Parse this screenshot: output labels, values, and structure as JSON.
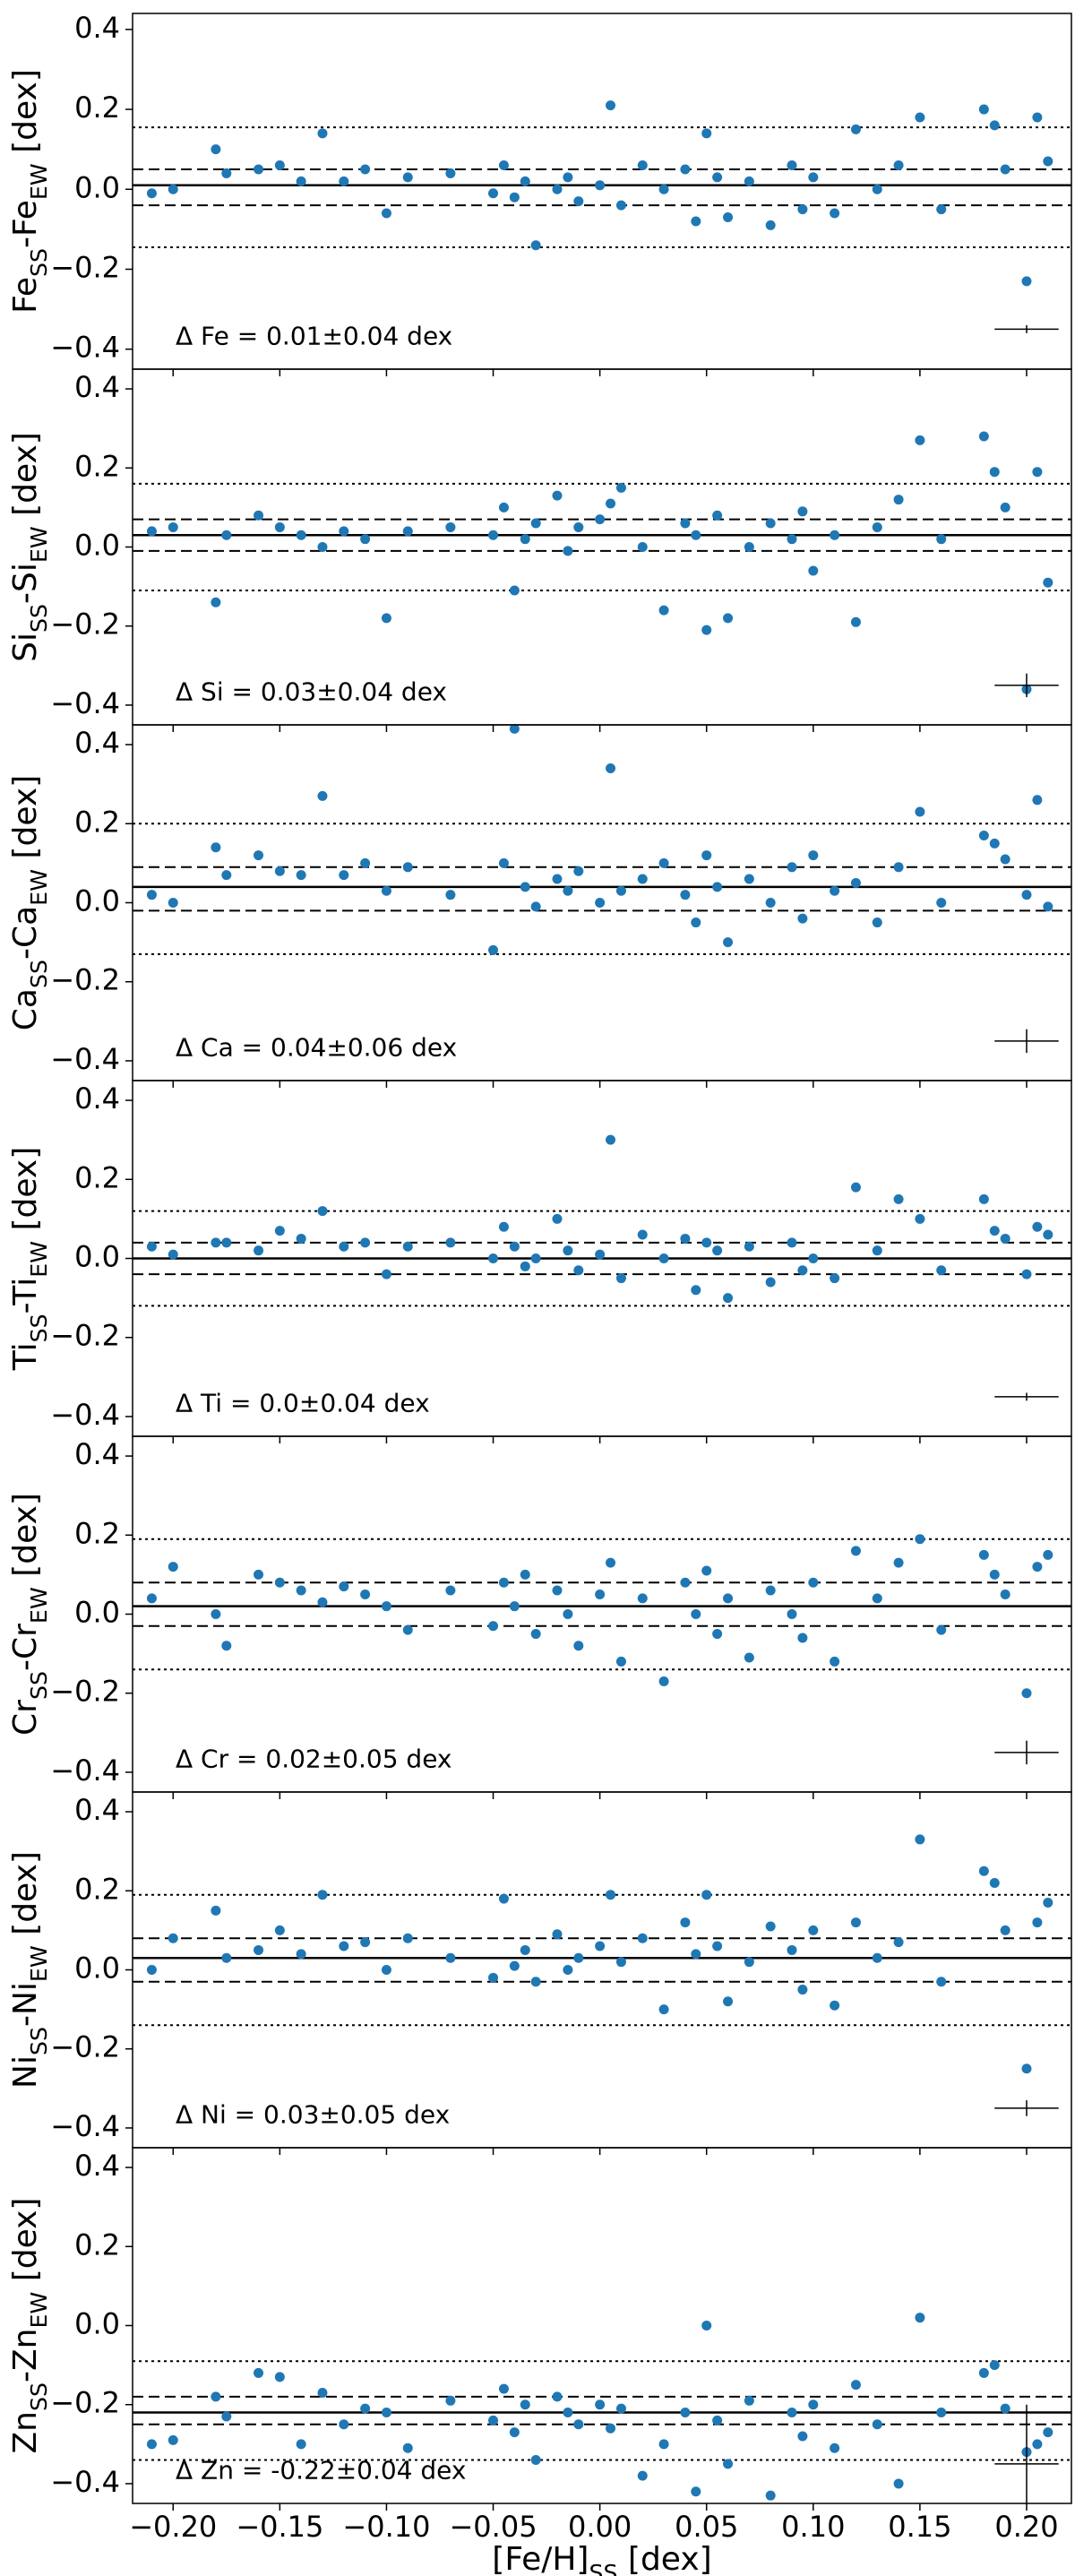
{
  "chart_data": [
    {
      "type": "scatter",
      "color": "#1f77b4",
      "ylabel": [
        "Fe",
        "SS",
        "-Fe",
        "EW",
        " [dex]"
      ],
      "annotation": "Δ Fe = 0.01±0.04 dex",
      "x": [
        -0.21,
        -0.2,
        -0.18,
        -0.175,
        -0.16,
        -0.15,
        -0.14,
        -0.13,
        -0.12,
        -0.11,
        -0.1,
        -0.09,
        -0.07,
        -0.05,
        -0.045,
        -0.04,
        -0.035,
        -0.03,
        -0.02,
        -0.015,
        -0.01,
        0.0,
        0.005,
        0.01,
        0.02,
        0.03,
        0.04,
        0.045,
        0.05,
        0.055,
        0.06,
        0.07,
        0.08,
        0.09,
        0.095,
        0.1,
        0.11,
        0.12,
        0.13,
        0.14,
        0.15,
        0.16,
        0.18,
        0.185,
        0.19,
        0.2,
        0.205,
        0.21
      ],
      "values": [
        -0.01,
        0.0,
        0.1,
        0.04,
        0.05,
        0.06,
        0.02,
        0.14,
        0.02,
        0.05,
        -0.06,
        0.03,
        0.04,
        -0.01,
        0.06,
        -0.02,
        0.02,
        -0.14,
        0.0,
        0.03,
        -0.03,
        0.01,
        0.21,
        -0.04,
        0.06,
        0.0,
        0.05,
        -0.08,
        0.14,
        0.03,
        -0.07,
        0.02,
        -0.09,
        0.06,
        -0.05,
        0.03,
        -0.06,
        0.15,
        0.0,
        0.06,
        0.18,
        -0.05,
        0.2,
        0.16,
        0.05,
        -0.23,
        0.18,
        0.07
      ],
      "hlines": [
        {
          "value": 0.01,
          "style": "solid"
        },
        {
          "value": 0.05,
          "style": "dashed"
        },
        {
          "value": -0.04,
          "style": "dashed"
        },
        {
          "value": 0.155,
          "style": "dotted"
        },
        {
          "value": -0.145,
          "style": "dotted"
        }
      ],
      "error": {
        "x": 0.2,
        "y": -0.35,
        "xerr": 0.015,
        "yerr": 0.01
      },
      "xlim": [
        -0.219,
        0.221
      ],
      "ylim": [
        -0.45,
        0.44
      ],
      "yticks": [
        {
          "value": -0.4,
          "label": "−0.4"
        },
        {
          "value": -0.2,
          "label": "−0.2"
        },
        {
          "value": 0,
          "label": "0.0"
        },
        0.2,
        0.4
      ]
    },
    {
      "type": "scatter",
      "color": "#1f77b4",
      "ylabel": [
        "Si",
        "SS",
        "-Si",
        "EW",
        " [dex]"
      ],
      "annotation": "Δ Si = 0.03±0.04 dex",
      "x": [
        -0.21,
        -0.2,
        -0.18,
        -0.175,
        -0.16,
        -0.15,
        -0.14,
        -0.13,
        -0.12,
        -0.11,
        -0.1,
        -0.09,
        -0.07,
        -0.05,
        -0.045,
        -0.04,
        -0.035,
        -0.03,
        -0.02,
        -0.015,
        -0.01,
        0.0,
        0.005,
        0.01,
        0.02,
        0.03,
        0.04,
        0.045,
        0.05,
        0.055,
        0.06,
        0.07,
        0.08,
        0.09,
        0.095,
        0.1,
        0.11,
        0.12,
        0.13,
        0.14,
        0.15,
        0.16,
        0.18,
        0.185,
        0.19,
        0.2,
        0.205,
        0.21
      ],
      "values": [
        0.04,
        0.05,
        -0.14,
        0.03,
        0.08,
        0.05,
        0.03,
        0.0,
        0.04,
        0.02,
        -0.18,
        0.04,
        0.05,
        0.03,
        0.1,
        -0.11,
        0.02,
        0.06,
        0.13,
        -0.01,
        0.05,
        0.07,
        0.11,
        0.15,
        0.0,
        -0.16,
        0.06,
        0.03,
        -0.21,
        0.08,
        -0.18,
        0.0,
        0.06,
        0.02,
        0.09,
        -0.06,
        0.03,
        -0.19,
        0.05,
        0.12,
        0.27,
        0.02,
        0.28,
        0.19,
        0.1,
        -0.36,
        0.19,
        -0.09
      ],
      "hlines": [
        {
          "value": 0.03,
          "style": "solid"
        },
        {
          "value": 0.07,
          "style": "dashed"
        },
        {
          "value": -0.01,
          "style": "dashed"
        },
        {
          "value": 0.16,
          "style": "dotted"
        },
        {
          "value": -0.11,
          "style": "dotted"
        }
      ],
      "error": {
        "x": 0.2,
        "y": -0.35,
        "xerr": 0.015,
        "yerr": 0.03
      },
      "xlim": [
        -0.219,
        0.221
      ],
      "ylim": [
        -0.45,
        0.45
      ],
      "yticks": [
        {
          "value": -0.4,
          "label": "−0.4"
        },
        {
          "value": -0.2,
          "label": "−0.2"
        },
        {
          "value": 0,
          "label": "0.0"
        },
        0.2,
        0.4
      ]
    },
    {
      "type": "scatter",
      "color": "#1f77b4",
      "ylabel": [
        "Ca",
        "SS",
        "-Ca",
        "EW",
        " [dex]"
      ],
      "annotation": "Δ Ca = 0.04±0.06 dex",
      "x": [
        -0.21,
        -0.2,
        -0.18,
        -0.175,
        -0.16,
        -0.15,
        -0.14,
        -0.13,
        -0.12,
        -0.11,
        -0.1,
        -0.09,
        -0.07,
        -0.05,
        -0.045,
        -0.04,
        -0.035,
        -0.03,
        -0.02,
        -0.015,
        -0.01,
        0.0,
        0.005,
        0.01,
        0.02,
        0.03,
        0.04,
        0.045,
        0.05,
        0.055,
        0.06,
        0.07,
        0.08,
        0.09,
        0.095,
        0.1,
        0.11,
        0.12,
        0.13,
        0.14,
        0.15,
        0.16,
        0.18,
        0.185,
        0.19,
        0.2,
        0.205,
        0.21
      ],
      "values": [
        0.02,
        0.0,
        0.14,
        0.07,
        0.12,
        0.08,
        0.07,
        0.27,
        0.07,
        0.1,
        0.03,
        0.09,
        0.02,
        -0.12,
        0.1,
        0.44,
        0.04,
        -0.01,
        0.06,
        0.03,
        0.08,
        0.0,
        0.34,
        0.03,
        0.06,
        0.1,
        0.02,
        -0.05,
        0.12,
        0.04,
        -0.1,
        0.06,
        0.0,
        0.09,
        -0.04,
        0.12,
        0.03,
        0.05,
        -0.05,
        0.09,
        0.23,
        0.0,
        0.17,
        0.15,
        0.11,
        0.02,
        0.26,
        -0.01
      ],
      "hlines": [
        {
          "value": 0.04,
          "style": "solid"
        },
        {
          "value": 0.09,
          "style": "dashed"
        },
        {
          "value": -0.02,
          "style": "dashed"
        },
        {
          "value": 0.2,
          "style": "dotted"
        },
        {
          "value": -0.13,
          "style": "dotted"
        }
      ],
      "error": {
        "x": 0.2,
        "y": -0.35,
        "xerr": 0.015,
        "yerr": 0.03
      },
      "xlim": [
        -0.219,
        0.221
      ],
      "ylim": [
        -0.45,
        0.45
      ],
      "yticks": [
        {
          "value": -0.4,
          "label": "−0.4"
        },
        {
          "value": -0.2,
          "label": "−0.2"
        },
        {
          "value": 0,
          "label": "0.0"
        },
        0.2,
        0.4
      ]
    },
    {
      "type": "scatter",
      "color": "#1f77b4",
      "ylabel": [
        "Ti",
        "SS",
        "-Ti",
        "EW",
        " [dex]"
      ],
      "annotation": "Δ Ti = 0.0±0.04 dex",
      "x": [
        -0.21,
        -0.2,
        -0.18,
        -0.175,
        -0.16,
        -0.15,
        -0.14,
        -0.13,
        -0.12,
        -0.11,
        -0.1,
        -0.09,
        -0.07,
        -0.05,
        -0.045,
        -0.04,
        -0.035,
        -0.03,
        -0.02,
        -0.015,
        -0.01,
        0.0,
        0.005,
        0.01,
        0.02,
        0.03,
        0.04,
        0.045,
        0.05,
        0.055,
        0.06,
        0.07,
        0.08,
        0.09,
        0.095,
        0.1,
        0.11,
        0.12,
        0.13,
        0.14,
        0.15,
        0.16,
        0.18,
        0.185,
        0.19,
        0.2,
        0.205,
        0.21
      ],
      "values": [
        0.03,
        0.01,
        0.04,
        0.04,
        0.02,
        0.07,
        0.05,
        0.12,
        0.03,
        0.04,
        -0.04,
        0.03,
        0.04,
        0.0,
        0.08,
        0.03,
        -0.02,
        0.0,
        0.1,
        0.02,
        -0.03,
        0.01,
        0.3,
        -0.05,
        0.06,
        0.0,
        0.05,
        -0.08,
        0.04,
        0.02,
        -0.1,
        0.03,
        -0.06,
        0.04,
        -0.03,
        0.0,
        -0.05,
        0.18,
        0.02,
        0.15,
        0.1,
        -0.03,
        0.15,
        0.07,
        0.05,
        -0.04,
        0.08,
        0.06
      ],
      "hlines": [
        {
          "value": 0,
          "style": "solid"
        },
        {
          "value": 0.04,
          "style": "dashed"
        },
        {
          "value": -0.04,
          "style": "dashed"
        },
        {
          "value": 0.12,
          "style": "dotted"
        },
        {
          "value": -0.12,
          "style": "dotted"
        }
      ],
      "error": {
        "x": 0.2,
        "y": -0.35,
        "xerr": 0.015,
        "yerr": 0.01
      },
      "xlim": [
        -0.219,
        0.221
      ],
      "ylim": [
        -0.45,
        0.45
      ],
      "yticks": [
        {
          "value": -0.4,
          "label": "−0.4"
        },
        {
          "value": -0.2,
          "label": "−0.2"
        },
        {
          "value": 0,
          "label": "0.0"
        },
        0.2,
        0.4
      ]
    },
    {
      "type": "scatter",
      "color": "#1f77b4",
      "ylabel": [
        "Cr",
        "SS",
        "-Cr",
        "EW",
        " [dex]"
      ],
      "annotation": "Δ Cr = 0.02±0.05 dex",
      "x": [
        -0.21,
        -0.2,
        -0.18,
        -0.175,
        -0.16,
        -0.15,
        -0.14,
        -0.13,
        -0.12,
        -0.11,
        -0.1,
        -0.09,
        -0.07,
        -0.05,
        -0.045,
        -0.04,
        -0.035,
        -0.03,
        -0.02,
        -0.015,
        -0.01,
        0.0,
        0.005,
        0.01,
        0.02,
        0.03,
        0.04,
        0.045,
        0.05,
        0.055,
        0.06,
        0.07,
        0.08,
        0.09,
        0.095,
        0.1,
        0.11,
        0.12,
        0.13,
        0.14,
        0.15,
        0.16,
        0.18,
        0.185,
        0.19,
        0.2,
        0.205,
        0.21
      ],
      "values": [
        0.04,
        0.12,
        0.0,
        -0.08,
        0.1,
        0.08,
        0.06,
        0.03,
        0.07,
        0.05,
        0.02,
        -0.04,
        0.06,
        -0.03,
        0.08,
        0.02,
        0.1,
        -0.05,
        0.06,
        0.0,
        -0.08,
        0.05,
        0.13,
        -0.12,
        0.04,
        -0.17,
        0.08,
        0.0,
        0.11,
        -0.05,
        0.04,
        -0.11,
        0.06,
        0.0,
        -0.06,
        0.08,
        -0.12,
        0.16,
        0.04,
        0.13,
        0.19,
        -0.04,
        0.15,
        0.1,
        0.05,
        -0.2,
        0.12,
        0.15
      ],
      "hlines": [
        {
          "value": 0.02,
          "style": "solid"
        },
        {
          "value": 0.08,
          "style": "dashed"
        },
        {
          "value": -0.03,
          "style": "dashed"
        },
        {
          "value": 0.19,
          "style": "dotted"
        },
        {
          "value": -0.14,
          "style": "dotted"
        }
      ],
      "error": {
        "x": 0.2,
        "y": -0.35,
        "xerr": 0.015,
        "yerr": 0.03
      },
      "xlim": [
        -0.219,
        0.221
      ],
      "ylim": [
        -0.45,
        0.45
      ],
      "yticks": [
        {
          "value": -0.4,
          "label": "−0.4"
        },
        {
          "value": -0.2,
          "label": "−0.2"
        },
        {
          "value": 0,
          "label": "0.0"
        },
        0.2,
        0.4
      ]
    },
    {
      "type": "scatter",
      "color": "#1f77b4",
      "ylabel": [
        "Ni",
        "SS",
        "-Ni",
        "EW",
        " [dex]"
      ],
      "annotation": "Δ Ni = 0.03±0.05 dex",
      "x": [
        -0.21,
        -0.2,
        -0.18,
        -0.175,
        -0.16,
        -0.15,
        -0.14,
        -0.13,
        -0.12,
        -0.11,
        -0.1,
        -0.09,
        -0.07,
        -0.05,
        -0.045,
        -0.04,
        -0.035,
        -0.03,
        -0.02,
        -0.015,
        -0.01,
        0.0,
        0.005,
        0.01,
        0.02,
        0.03,
        0.04,
        0.045,
        0.05,
        0.055,
        0.06,
        0.07,
        0.08,
        0.09,
        0.095,
        0.1,
        0.11,
        0.12,
        0.13,
        0.14,
        0.15,
        0.16,
        0.18,
        0.185,
        0.19,
        0.2,
        0.205,
        0.21
      ],
      "values": [
        0.0,
        0.08,
        0.15,
        0.03,
        0.05,
        0.1,
        0.04,
        0.19,
        0.06,
        0.07,
        0.0,
        0.08,
        0.03,
        -0.02,
        0.18,
        0.01,
        0.05,
        -0.03,
        0.09,
        0.0,
        0.03,
        0.06,
        0.19,
        0.02,
        0.08,
        -0.1,
        0.12,
        0.04,
        0.19,
        0.06,
        -0.08,
        0.02,
        0.11,
        0.05,
        -0.05,
        0.1,
        -0.09,
        0.12,
        0.03,
        0.07,
        0.33,
        -0.03,
        0.25,
        0.22,
        0.1,
        -0.25,
        0.12,
        0.17
      ],
      "hlines": [
        {
          "value": 0.03,
          "style": "solid"
        },
        {
          "value": 0.08,
          "style": "dashed"
        },
        {
          "value": -0.03,
          "style": "dashed"
        },
        {
          "value": 0.19,
          "style": "dotted"
        },
        {
          "value": -0.14,
          "style": "dotted"
        }
      ],
      "error": {
        "x": 0.2,
        "y": -0.35,
        "xerr": 0.015,
        "yerr": 0.02
      },
      "xlim": [
        -0.219,
        0.221
      ],
      "ylim": [
        -0.45,
        0.45
      ],
      "yticks": [
        {
          "value": -0.4,
          "label": "−0.4"
        },
        {
          "value": -0.2,
          "label": "−0.2"
        },
        {
          "value": 0,
          "label": "0.0"
        },
        0.2,
        0.4
      ]
    },
    {
      "type": "scatter",
      "color": "#1f77b4",
      "ylabel": [
        "Zn",
        "SS",
        "-Zn",
        "EW",
        " [dex]"
      ],
      "xlabel": [
        "[Fe/H]",
        "SS",
        " [dex]"
      ],
      "annotation": "Δ Zn = -0.22±0.04 dex",
      "x": [
        -0.21,
        -0.2,
        -0.18,
        -0.175,
        -0.16,
        -0.15,
        -0.14,
        -0.13,
        -0.12,
        -0.11,
        -0.1,
        -0.09,
        -0.07,
        -0.05,
        -0.045,
        -0.04,
        -0.035,
        -0.03,
        -0.02,
        -0.015,
        -0.01,
        0.0,
        0.005,
        0.01,
        0.02,
        0.03,
        0.04,
        0.045,
        0.05,
        0.055,
        0.06,
        0.07,
        0.08,
        0.09,
        0.095,
        0.1,
        0.11,
        0.12,
        0.13,
        0.14,
        0.15,
        0.16,
        0.18,
        0.185,
        0.19,
        0.2,
        0.205,
        0.21
      ],
      "values": [
        -0.3,
        -0.29,
        -0.18,
        -0.23,
        -0.12,
        -0.13,
        -0.3,
        -0.17,
        -0.25,
        -0.21,
        -0.22,
        -0.31,
        -0.19,
        -0.24,
        -0.16,
        -0.27,
        -0.2,
        -0.34,
        -0.18,
        -0.22,
        -0.25,
        -0.2,
        -0.26,
        -0.21,
        -0.38,
        -0.3,
        -0.22,
        -0.42,
        0.0,
        -0.24,
        -0.35,
        -0.19,
        -0.43,
        -0.22,
        -0.28,
        -0.2,
        -0.31,
        -0.15,
        -0.25,
        -0.4,
        0.02,
        -0.22,
        -0.12,
        -0.1,
        -0.21,
        -0.32,
        -0.3,
        -0.27
      ],
      "hlines": [
        {
          "value": -0.22,
          "style": "solid"
        },
        {
          "value": -0.18,
          "style": "dashed"
        },
        {
          "value": -0.25,
          "style": "dashed"
        },
        {
          "value": -0.09,
          "style": "dotted"
        },
        {
          "value": -0.34,
          "style": "dotted"
        }
      ],
      "error": {
        "x": 0.2,
        "y": -0.35,
        "xerr": 0.015,
        "yerr": 0.15
      },
      "xlim": [
        -0.219,
        0.221
      ],
      "ylim": [
        -0.45,
        0.45
      ],
      "yticks": [
        {
          "value": -0.4,
          "label": "−0.4"
        },
        {
          "value": -0.2,
          "label": "−0.2"
        },
        {
          "value": 0,
          "label": "0.0"
        },
        0.2,
        0.4
      ],
      "xticks": [
        {
          "value": -0.2,
          "label": "−0.20"
        },
        {
          "value": -0.15,
          "label": "−0.15"
        },
        {
          "value": -0.1,
          "label": "−0.10"
        },
        {
          "value": -0.05,
          "label": "−0.05"
        },
        {
          "value": 0,
          "label": "0.00"
        },
        {
          "value": 0.05,
          "label": "0.05"
        },
        {
          "value": 0.1,
          "label": "0.10"
        },
        {
          "value": 0.15,
          "label": "0.15"
        },
        {
          "value": 0.2,
          "label": "0.20"
        }
      ]
    }
  ]
}
